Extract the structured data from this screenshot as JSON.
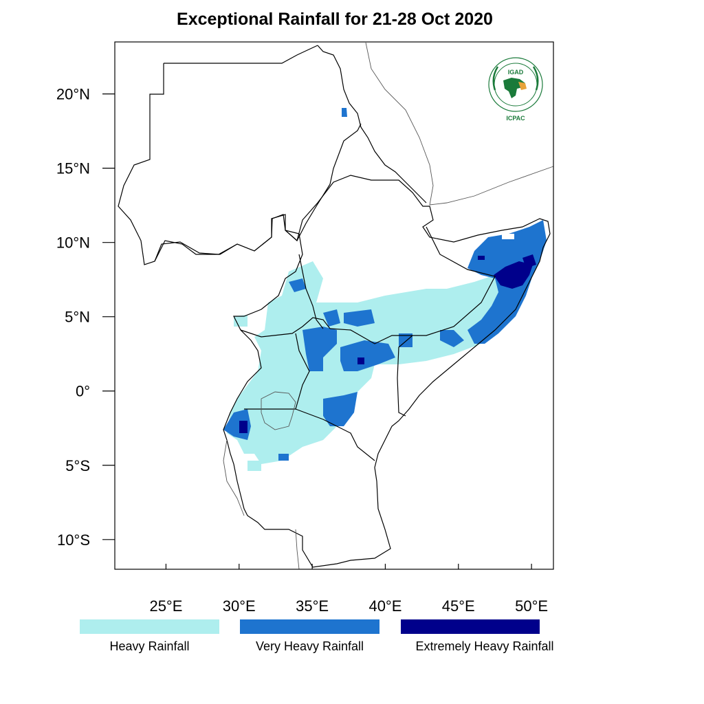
{
  "title": "Exceptional Rainfall for 21-28 Oct 2020",
  "map": {
    "lon_range": [
      21.5,
      51.5
    ],
    "lat_range": [
      -12,
      23.5
    ],
    "x_ticks": [
      {
        "lon": 25,
        "label": "25°E"
      },
      {
        "lon": 30,
        "label": "30°E"
      },
      {
        "lon": 35,
        "label": "35°E"
      },
      {
        "lon": 40,
        "label": "40°E"
      },
      {
        "lon": 45,
        "label": "45°E"
      },
      {
        "lon": 50,
        "label": "50°E"
      }
    ],
    "y_ticks": [
      {
        "lat": 20,
        "label": "20°N"
      },
      {
        "lat": 15,
        "label": "15°N"
      },
      {
        "lat": 10,
        "label": "10°N"
      },
      {
        "lat": 5,
        "label": "5°N"
      },
      {
        "lat": 0,
        "label": "0°"
      },
      {
        "lat": -5,
        "label": "5°S"
      },
      {
        "lat": -10,
        "label": "10°S"
      }
    ]
  },
  "logo": {
    "name": "IGAD",
    "ring_text": "INTERGOVERNMENTAL AUTHORITY ON DEVELOPMENT",
    "caption": "ICPAC",
    "colors": {
      "green": "#1a7a3a",
      "orange": "#e8a33a"
    }
  },
  "legend": [
    {
      "label": "Heavy Rainfall",
      "color": "#aeeeee"
    },
    {
      "label": "Very Heavy Rainfall",
      "color": "#1e74cf"
    },
    {
      "label": "Extremely Heavy Rainfall",
      "color": "#00008b"
    }
  ]
}
